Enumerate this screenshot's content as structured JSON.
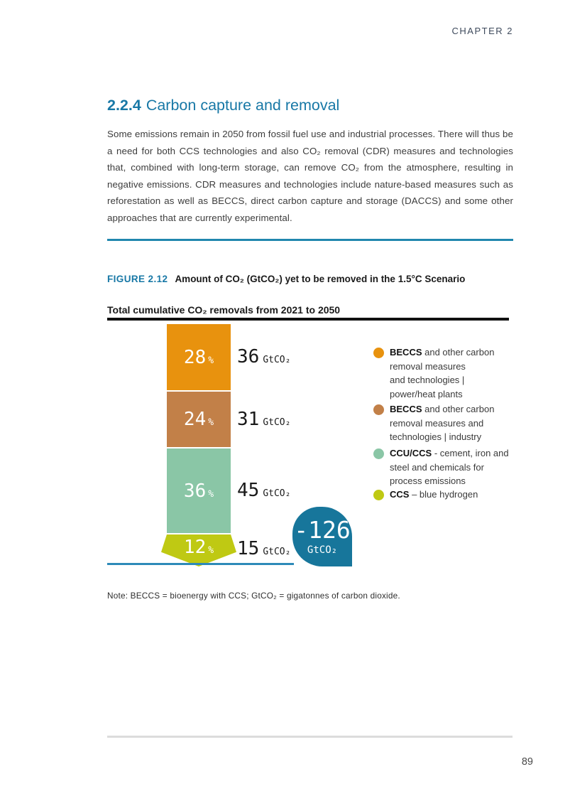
{
  "header": {
    "chapter": "CHAPTER 2"
  },
  "section": {
    "number": "2.2.4",
    "title": "Carbon capture and removal",
    "body": "Some emissions remain in 2050 from fossil fuel use and industrial processes. There will thus be a need for both CCS technologies and also CO₂ removal (CDR) measures and technologies that, combined with long-term storage, can remove CO₂ from the atmosphere, resulting in negative emissions. CDR measures and technologies include nature-based measures such as reforestation as well as BECCS, direct carbon capture and storage (DACCS) and some other approaches that are currently experimental."
  },
  "figure": {
    "label": "FIGURE 2.12",
    "title": "Amount of CO₂ (GtCO₂) yet to be removed in the 1.5°C Scenario",
    "subtitle": "Total cumulative CO₂ removals from 2021 to 2050",
    "note": "Note: BECCS = bioenergy with CCS; GtCO₂ = gigatonnes of carbon dioxide."
  },
  "chart_data": {
    "type": "bar",
    "stacked": true,
    "title": "Total cumulative CO₂ removals from 2021 to 2050",
    "unit": "GtCO₂",
    "categories": [
      "BECCS and other carbon removal measures and technologies | power/heat plants",
      "BECCS and other carbon removal measures and technologies | industry",
      "CCU/CCS - cement, iron and steel and chemicals for process emissions",
      "CCS - blue hydrogen"
    ],
    "values": [
      36,
      31,
      45,
      15
    ],
    "percents": [
      28,
      24,
      36,
      12
    ],
    "percent_sign": "%",
    "legend_position": "right",
    "segments": [
      {
        "percent": "28",
        "value": "36",
        "unit": "GtCO₂",
        "color": "#E8920E"
      },
      {
        "percent": "24",
        "value": "31",
        "unit": "GtCO₂",
        "color": "#C28048"
      },
      {
        "percent": "36",
        "value": "45",
        "unit": "GtCO₂",
        "color": "#8AC6A6"
      },
      {
        "percent": "12",
        "value": "15",
        "unit": "GtCO₂",
        "color": "#BFC913"
      }
    ],
    "total": {
      "value": "-126",
      "unit": "GtCO₂",
      "color": "#17769B"
    }
  },
  "legend": {
    "items": [
      {
        "color": "#E8920E",
        "lead": "BECCS",
        "rest": " and other carbon",
        "lines": [
          "removal measures",
          "and technologies |",
          "power/heat plants"
        ]
      },
      {
        "color": "#C28048",
        "lead": "BECCS",
        "rest": " and other carbon",
        "lines": [
          "removal measures and",
          "technologies | industry"
        ]
      },
      {
        "color": "#8AC6A6",
        "lead": "CCU/CCS",
        "rest": " - cement, iron and",
        "lines": [
          "steel and chemicals for",
          "process emissions"
        ]
      },
      {
        "color": "#BFC913",
        "lead": "CCS",
        "rest": " – blue hydrogen",
        "lines": []
      }
    ]
  },
  "colors": {
    "accent_teal": "#1878A6",
    "divider_blue": "#2187AE",
    "baseline_blue": "#2E8AB8",
    "rule_black": "#111111",
    "footer_gray": "#DCDCDC"
  },
  "footer": {
    "page_number": "89"
  }
}
